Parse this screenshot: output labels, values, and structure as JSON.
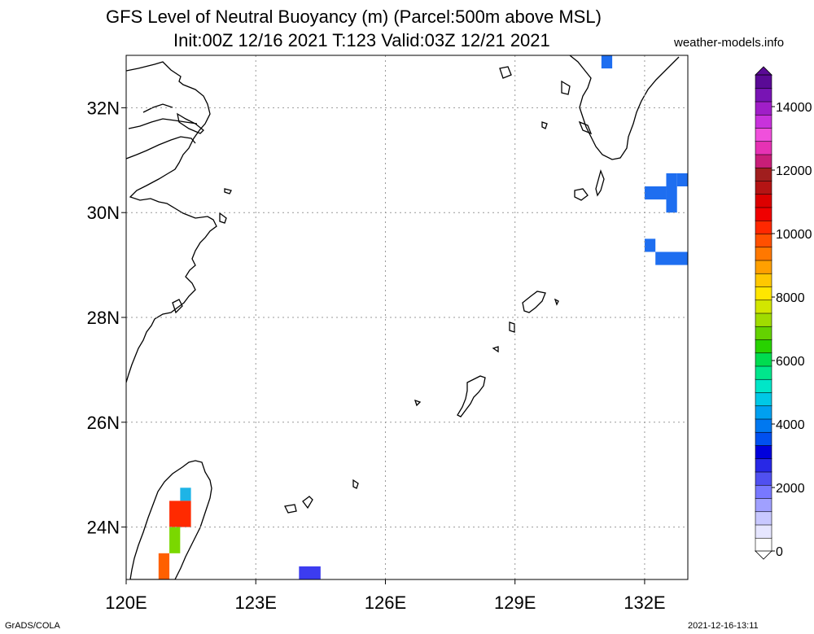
{
  "header": {
    "title_line1": "GFS Level of Neutral Buoyancy (m) (Parcel:500m above MSL)",
    "title_line2": "Init:00Z 12/16 2021 T:123 Valid:03Z 12/21 2021",
    "site": "weather-models.info"
  },
  "footer": {
    "left": "GrADS/COLA",
    "right": "2021-12-16-13:11"
  },
  "map": {
    "lon_range": [
      120,
      133
    ],
    "lat_range": [
      23,
      33
    ],
    "x_ticks": [
      {
        "value": 120,
        "label": "120E"
      },
      {
        "value": 123,
        "label": "123E"
      },
      {
        "value": 126,
        "label": "126E"
      },
      {
        "value": 129,
        "label": "129E"
      },
      {
        "value": 132,
        "label": "132E"
      }
    ],
    "y_ticks": [
      {
        "value": 24,
        "label": "24N"
      },
      {
        "value": 26,
        "label": "26N"
      },
      {
        "value": 28,
        "label": "28N"
      },
      {
        "value": 30,
        "label": "30N"
      },
      {
        "value": 32,
        "label": "32N"
      }
    ],
    "grid": true,
    "cells": [
      {
        "lon": 131.0,
        "lat": 32.75,
        "w": 0.25,
        "h": 0.25,
        "color": "#1e6ef0"
      },
      {
        "lon": 132.0,
        "lat": 30.25,
        "w": 0.5,
        "h": 0.25,
        "color": "#1e6ef0"
      },
      {
        "lon": 132.5,
        "lat": 30.0,
        "w": 0.25,
        "h": 0.75,
        "color": "#1e6ef0"
      },
      {
        "lon": 132.75,
        "lat": 30.5,
        "w": 0.25,
        "h": 0.25,
        "color": "#1e6ef0"
      },
      {
        "lon": 132.0,
        "lat": 29.25,
        "w": 0.25,
        "h": 0.25,
        "color": "#1e6ef0"
      },
      {
        "lon": 132.25,
        "lat": 29.0,
        "w": 0.75,
        "h": 0.25,
        "color": "#1e6ef0"
      },
      {
        "lon": 124.0,
        "lat": 23.0,
        "w": 0.5,
        "h": 0.25,
        "color": "#3c3cf0"
      },
      {
        "lon": 121.25,
        "lat": 24.5,
        "w": 0.25,
        "h": 0.25,
        "color": "#1eb4e6"
      },
      {
        "lon": 121.0,
        "lat": 24.0,
        "w": 0.5,
        "h": 0.5,
        "color": "#ff2a00"
      },
      {
        "lon": 121.0,
        "lat": 23.5,
        "w": 0.25,
        "h": 0.5,
        "color": "#7ad800"
      },
      {
        "lon": 120.75,
        "lat": 23.0,
        "w": 0.25,
        "h": 0.5,
        "color": "#ff6000"
      }
    ]
  },
  "colorbar": {
    "min": 0,
    "max": 15000,
    "labels": [
      {
        "value": 0,
        "label": "0"
      },
      {
        "value": 2000,
        "label": "2000"
      },
      {
        "value": 4000,
        "label": "4000"
      },
      {
        "value": 6000,
        "label": "6000"
      },
      {
        "value": 8000,
        "label": "8000"
      },
      {
        "value": 10000,
        "label": "10000"
      },
      {
        "value": 12000,
        "label": "12000"
      },
      {
        "value": 14000,
        "label": "14000"
      }
    ],
    "colors": [
      "#ffffff",
      "#e6e6ff",
      "#c8c8ff",
      "#a0a0ff",
      "#7878ff",
      "#5050f0",
      "#2828e6",
      "#0000dc",
      "#0050f0",
      "#0078f0",
      "#00a0f0",
      "#00c8e6",
      "#00e6c8",
      "#00e68c",
      "#00dc50",
      "#28d200",
      "#64d200",
      "#a0dc00",
      "#d2e600",
      "#ffe600",
      "#ffc800",
      "#ffa000",
      "#ff7800",
      "#ff5000",
      "#ff2800",
      "#f00000",
      "#dc0000",
      "#b41414",
      "#a01e1e",
      "#c81e78",
      "#e632b4",
      "#f050dc",
      "#c832dc",
      "#a01ec8",
      "#7814b4",
      "#5a0a96"
    ]
  }
}
